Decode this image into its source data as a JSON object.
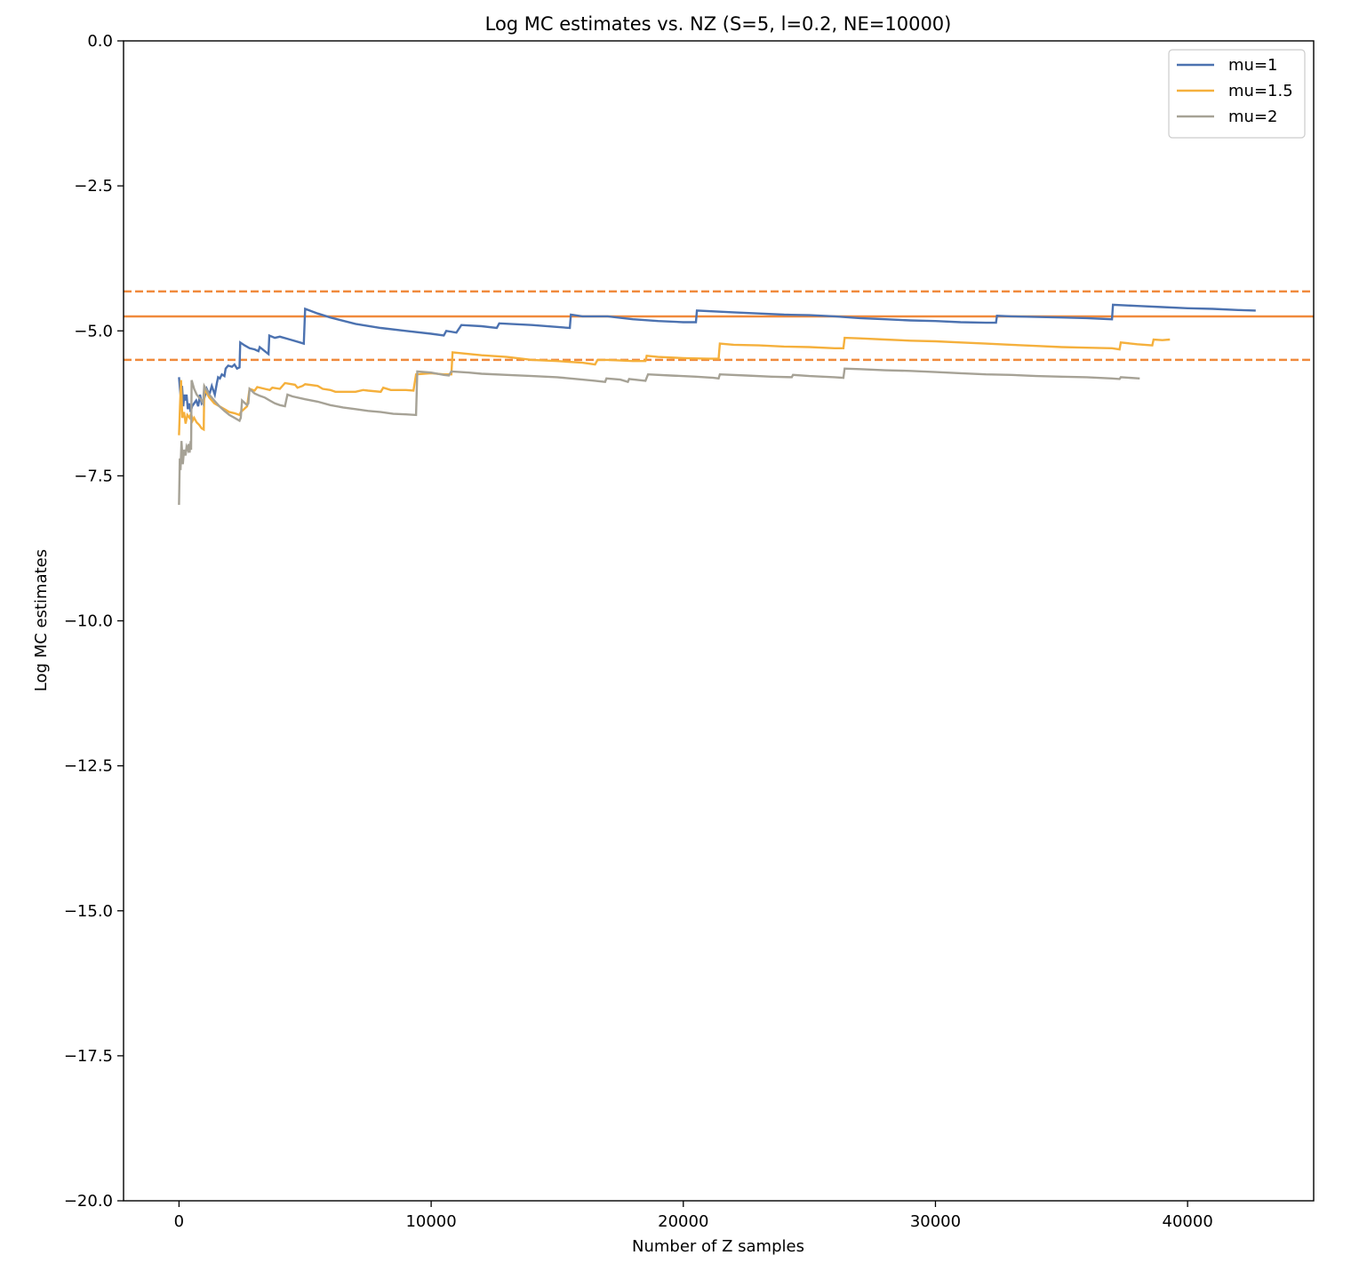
{
  "chart_data": {
    "type": "line",
    "title": "Log MC estimates vs. NZ (S=5, l=0.2, NE=10000)",
    "xlabel": "Number of Z samples",
    "ylabel": "Log MC estimates",
    "xlim": [
      -2200,
      45000
    ],
    "ylim": [
      -20,
      0
    ],
    "xticks": [
      0,
      10000,
      20000,
      30000,
      40000
    ],
    "xtick_labels": [
      "0",
      "10000",
      "20000",
      "30000",
      "40000"
    ],
    "yticks": [
      0,
      -2.5,
      -5,
      -7.5,
      -10,
      -12.5,
      -15,
      -17.5,
      -20
    ],
    "ytick_labels": [
      "0.0",
      "−2.5",
      "−5.0",
      "−7.5",
      "−10.0",
      "−12.5",
      "−15.0",
      "−17.5",
      "−20.0"
    ],
    "grid": false,
    "legend_position": "top-right",
    "reference_lines": [
      {
        "y": -4.32,
        "style": "dashed",
        "color": "#f08a3c"
      },
      {
        "y": -4.75,
        "style": "solid",
        "color": "#f08a3c"
      },
      {
        "y": -5.5,
        "style": "dashed",
        "color": "#f08a3c"
      }
    ],
    "series": [
      {
        "name": "mu=1",
        "color": "#4c72b0",
        "points": [
          [
            0,
            -5.8
          ],
          [
            40,
            -6.0
          ],
          [
            80,
            -6.2
          ],
          [
            120,
            -5.95
          ],
          [
            170,
            -6.3
          ],
          [
            210,
            -6.1
          ],
          [
            260,
            -6.2
          ],
          [
            300,
            -6.1
          ],
          [
            350,
            -6.35
          ],
          [
            400,
            -6.25
          ],
          [
            460,
            -6.4
          ],
          [
            520,
            -6.3
          ],
          [
            600,
            -6.25
          ],
          [
            680,
            -6.2
          ],
          [
            760,
            -6.3
          ],
          [
            830,
            -6.1
          ],
          [
            900,
            -6.25
          ],
          [
            980,
            -6.2
          ],
          [
            1100,
            -6.0
          ],
          [
            1200,
            -6.1
          ],
          [
            1300,
            -5.95
          ],
          [
            1420,
            -6.1
          ],
          [
            1500,
            -5.9
          ],
          [
            1550,
            -5.8
          ],
          [
            1620,
            -5.82
          ],
          [
            1700,
            -5.75
          ],
          [
            1800,
            -5.78
          ],
          [
            1850,
            -5.65
          ],
          [
            1950,
            -5.6
          ],
          [
            2100,
            -5.62
          ],
          [
            2200,
            -5.58
          ],
          [
            2300,
            -5.65
          ],
          [
            2400,
            -5.63
          ],
          [
            2430,
            -5.2
          ],
          [
            2600,
            -5.25
          ],
          [
            2800,
            -5.3
          ],
          [
            3000,
            -5.32
          ],
          [
            3150,
            -5.35
          ],
          [
            3200,
            -5.28
          ],
          [
            3400,
            -5.35
          ],
          [
            3550,
            -5.4
          ],
          [
            3580,
            -5.08
          ],
          [
            3800,
            -5.12
          ],
          [
            4000,
            -5.1
          ],
          [
            4400,
            -5.15
          ],
          [
            4800,
            -5.2
          ],
          [
            4950,
            -5.22
          ],
          [
            5000,
            -4.62
          ],
          [
            5500,
            -4.7
          ],
          [
            6000,
            -4.77
          ],
          [
            7000,
            -4.88
          ],
          [
            8000,
            -4.95
          ],
          [
            9000,
            -5.0
          ],
          [
            10000,
            -5.05
          ],
          [
            10500,
            -5.08
          ],
          [
            10600,
            -5.0
          ],
          [
            11000,
            -5.03
          ],
          [
            11200,
            -4.9
          ],
          [
            12000,
            -4.92
          ],
          [
            12600,
            -4.95
          ],
          [
            12700,
            -4.87
          ],
          [
            14000,
            -4.9
          ],
          [
            15500,
            -4.95
          ],
          [
            15540,
            -4.72
          ],
          [
            16000,
            -4.75
          ],
          [
            17000,
            -4.75
          ],
          [
            18000,
            -4.8
          ],
          [
            19000,
            -4.83
          ],
          [
            20000,
            -4.85
          ],
          [
            20500,
            -4.85
          ],
          [
            20540,
            -4.65
          ],
          [
            22000,
            -4.68
          ],
          [
            23000,
            -4.7
          ],
          [
            24000,
            -4.72
          ],
          [
            25000,
            -4.73
          ],
          [
            26000,
            -4.75
          ],
          [
            27000,
            -4.78
          ],
          [
            28000,
            -4.8
          ],
          [
            29000,
            -4.82
          ],
          [
            30000,
            -4.83
          ],
          [
            31000,
            -4.85
          ],
          [
            32000,
            -4.86
          ],
          [
            32400,
            -4.86
          ],
          [
            32440,
            -4.74
          ],
          [
            33000,
            -4.75
          ],
          [
            34000,
            -4.76
          ],
          [
            35000,
            -4.77
          ],
          [
            36000,
            -4.78
          ],
          [
            37000,
            -4.8
          ],
          [
            37040,
            -4.55
          ],
          [
            38000,
            -4.57
          ],
          [
            39000,
            -4.59
          ],
          [
            40000,
            -4.61
          ],
          [
            41000,
            -4.62
          ],
          [
            42000,
            -4.64
          ],
          [
            42700,
            -4.65
          ]
        ]
      },
      {
        "name": "mu=1.5",
        "color": "#f5b03c",
        "points": [
          [
            0,
            -6.8
          ],
          [
            40,
            -6.3
          ],
          [
            80,
            -5.85
          ],
          [
            130,
            -6.5
          ],
          [
            200,
            -6.4
          ],
          [
            260,
            -6.6
          ],
          [
            330,
            -6.45
          ],
          [
            420,
            -6.5
          ],
          [
            480,
            -6.42
          ],
          [
            540,
            -6.55
          ],
          [
            600,
            -6.5
          ],
          [
            700,
            -6.58
          ],
          [
            800,
            -6.62
          ],
          [
            900,
            -6.68
          ],
          [
            980,
            -6.7
          ],
          [
            1000,
            -6.0
          ],
          [
            1200,
            -6.15
          ],
          [
            1400,
            -6.25
          ],
          [
            1600,
            -6.3
          ],
          [
            1800,
            -6.35
          ],
          [
            2000,
            -6.4
          ],
          [
            2200,
            -6.42
          ],
          [
            2400,
            -6.45
          ],
          [
            2450,
            -6.4
          ],
          [
            2700,
            -6.3
          ],
          [
            2800,
            -6.0
          ],
          [
            3000,
            -6.03
          ],
          [
            3100,
            -5.97
          ],
          [
            3400,
            -6.0
          ],
          [
            3600,
            -6.02
          ],
          [
            3700,
            -5.98
          ],
          [
            4000,
            -6.0
          ],
          [
            4200,
            -5.9
          ],
          [
            4600,
            -5.93
          ],
          [
            4700,
            -5.98
          ],
          [
            4900,
            -5.95
          ],
          [
            5000,
            -5.92
          ],
          [
            5500,
            -5.95
          ],
          [
            5700,
            -6.0
          ],
          [
            6000,
            -6.02
          ],
          [
            6200,
            -6.05
          ],
          [
            7000,
            -6.05
          ],
          [
            7300,
            -6.02
          ],
          [
            7500,
            -6.03
          ],
          [
            8000,
            -6.05
          ],
          [
            8100,
            -5.98
          ],
          [
            8400,
            -6.02
          ],
          [
            9000,
            -6.02
          ],
          [
            9300,
            -6.03
          ],
          [
            9400,
            -5.75
          ],
          [
            10000,
            -5.73
          ],
          [
            10500,
            -5.75
          ],
          [
            10800,
            -5.75
          ],
          [
            10850,
            -5.37
          ],
          [
            12000,
            -5.42
          ],
          [
            13000,
            -5.45
          ],
          [
            14000,
            -5.5
          ],
          [
            15000,
            -5.52
          ],
          [
            16000,
            -5.55
          ],
          [
            16500,
            -5.58
          ],
          [
            16600,
            -5.5
          ],
          [
            17000,
            -5.5
          ],
          [
            18000,
            -5.52
          ],
          [
            18500,
            -5.52
          ],
          [
            18550,
            -5.43
          ],
          [
            19000,
            -5.45
          ],
          [
            20000,
            -5.47
          ],
          [
            21000,
            -5.48
          ],
          [
            21400,
            -5.48
          ],
          [
            21450,
            -5.22
          ],
          [
            22000,
            -5.24
          ],
          [
            23000,
            -5.25
          ],
          [
            24000,
            -5.27
          ],
          [
            25000,
            -5.28
          ],
          [
            26000,
            -5.3
          ],
          [
            26350,
            -5.3
          ],
          [
            26400,
            -5.12
          ],
          [
            27000,
            -5.13
          ],
          [
            28000,
            -5.15
          ],
          [
            29000,
            -5.17
          ],
          [
            30000,
            -5.18
          ],
          [
            31000,
            -5.2
          ],
          [
            32000,
            -5.22
          ],
          [
            33000,
            -5.24
          ],
          [
            34000,
            -5.26
          ],
          [
            35000,
            -5.28
          ],
          [
            36000,
            -5.29
          ],
          [
            37000,
            -5.3
          ],
          [
            37300,
            -5.32
          ],
          [
            37350,
            -5.2
          ],
          [
            38000,
            -5.23
          ],
          [
            38600,
            -5.25
          ],
          [
            38650,
            -5.15
          ],
          [
            39000,
            -5.16
          ],
          [
            39300,
            -5.15
          ]
        ]
      },
      {
        "name": "mu=2",
        "color": "#a6a296",
        "points": [
          [
            0,
            -8.0
          ],
          [
            30,
            -7.2
          ],
          [
            60,
            -7.4
          ],
          [
            100,
            -6.9
          ],
          [
            150,
            -7.3
          ],
          [
            200,
            -7.05
          ],
          [
            260,
            -7.15
          ],
          [
            300,
            -7.0
          ],
          [
            350,
            -7.05
          ],
          [
            380,
            -6.95
          ],
          [
            420,
            -7.1
          ],
          [
            460,
            -6.9
          ],
          [
            480,
            -7.05
          ],
          [
            500,
            -5.85
          ],
          [
            600,
            -6.0
          ],
          [
            700,
            -6.1
          ],
          [
            800,
            -6.15
          ],
          [
            900,
            -6.2
          ],
          [
            950,
            -6.25
          ],
          [
            1000,
            -5.95
          ],
          [
            1200,
            -6.1
          ],
          [
            1400,
            -6.2
          ],
          [
            1600,
            -6.3
          ],
          [
            1800,
            -6.38
          ],
          [
            2000,
            -6.45
          ],
          [
            2200,
            -6.5
          ],
          [
            2400,
            -6.55
          ],
          [
            2450,
            -6.5
          ],
          [
            2500,
            -6.2
          ],
          [
            2700,
            -6.28
          ],
          [
            2750,
            -6.25
          ],
          [
            2800,
            -6.0
          ],
          [
            3000,
            -6.08
          ],
          [
            3200,
            -6.12
          ],
          [
            3400,
            -6.15
          ],
          [
            3600,
            -6.2
          ],
          [
            3800,
            -6.25
          ],
          [
            4000,
            -6.28
          ],
          [
            4200,
            -6.3
          ],
          [
            4300,
            -6.1
          ],
          [
            4500,
            -6.13
          ],
          [
            5000,
            -6.18
          ],
          [
            5500,
            -6.22
          ],
          [
            6000,
            -6.28
          ],
          [
            6500,
            -6.32
          ],
          [
            7000,
            -6.35
          ],
          [
            7500,
            -6.38
          ],
          [
            8000,
            -6.4
          ],
          [
            8500,
            -6.43
          ],
          [
            9000,
            -6.44
          ],
          [
            9400,
            -6.45
          ],
          [
            9450,
            -5.7
          ],
          [
            10000,
            -5.72
          ],
          [
            10500,
            -5.76
          ],
          [
            10700,
            -5.77
          ],
          [
            10800,
            -5.7
          ],
          [
            11500,
            -5.72
          ],
          [
            12000,
            -5.74
          ],
          [
            13000,
            -5.76
          ],
          [
            14000,
            -5.78
          ],
          [
            15000,
            -5.8
          ],
          [
            16000,
            -5.84
          ],
          [
            16500,
            -5.86
          ],
          [
            16900,
            -5.88
          ],
          [
            16950,
            -5.82
          ],
          [
            17500,
            -5.84
          ],
          [
            17800,
            -5.88
          ],
          [
            17850,
            -5.83
          ],
          [
            18500,
            -5.86
          ],
          [
            18600,
            -5.75
          ],
          [
            19500,
            -5.77
          ],
          [
            20500,
            -5.79
          ],
          [
            21200,
            -5.81
          ],
          [
            21400,
            -5.82
          ],
          [
            21450,
            -5.75
          ],
          [
            22500,
            -5.77
          ],
          [
            23500,
            -5.79
          ],
          [
            24300,
            -5.8
          ],
          [
            24350,
            -5.76
          ],
          [
            25000,
            -5.78
          ],
          [
            26000,
            -5.8
          ],
          [
            26350,
            -5.81
          ],
          [
            26400,
            -5.65
          ],
          [
            27000,
            -5.66
          ],
          [
            28000,
            -5.68
          ],
          [
            29000,
            -5.69
          ],
          [
            30000,
            -5.71
          ],
          [
            31000,
            -5.73
          ],
          [
            32000,
            -5.75
          ],
          [
            33000,
            -5.76
          ],
          [
            34000,
            -5.78
          ],
          [
            35000,
            -5.79
          ],
          [
            36000,
            -5.8
          ],
          [
            37000,
            -5.82
          ],
          [
            37300,
            -5.83
          ],
          [
            37350,
            -5.8
          ],
          [
            38100,
            -5.82
          ]
        ]
      }
    ]
  }
}
